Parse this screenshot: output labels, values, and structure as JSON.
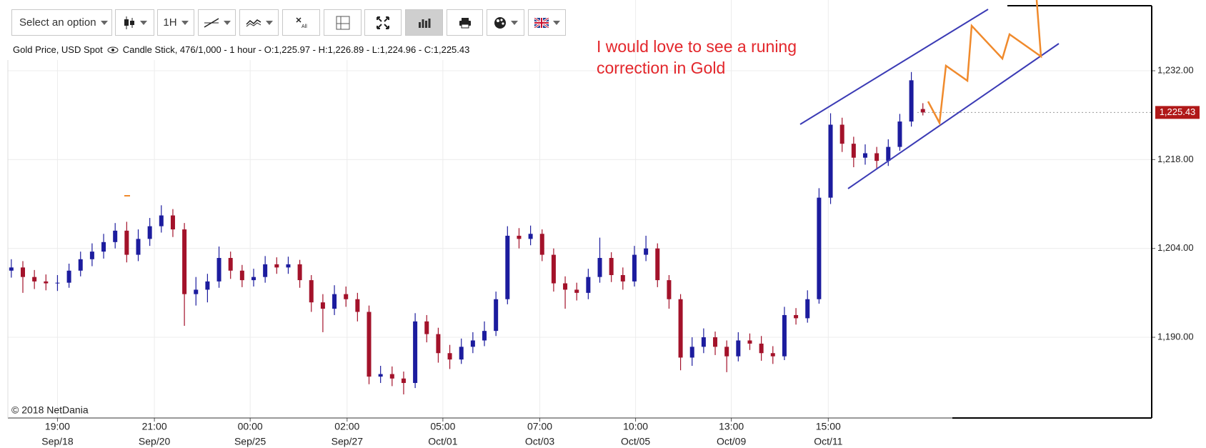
{
  "toolbar": {
    "select": "Select an option",
    "interval": "1H"
  },
  "chart_data": {
    "type": "candlestick",
    "instrument": "Gold Price, USD Spot",
    "info": "Candle Stick, 476/1,000 - 1 hour - O:1,225.97 - H:1,226.89 - L:1,224.96 - C:1,225.43",
    "annotation": [
      "I would love to see a runing",
      "correction in Gold"
    ],
    "copyright": "© 2018 NetDania",
    "up_color": "#1c1c9e",
    "down_color": "#a3122a",
    "x": [
      0,
      1,
      2,
      3,
      4,
      5,
      6,
      7,
      8,
      9,
      10,
      11,
      12,
      13,
      14,
      15,
      16,
      17,
      18,
      19,
      20,
      21,
      22,
      23,
      24,
      25,
      26,
      27,
      28,
      29,
      30,
      31,
      32,
      33,
      34,
      35,
      36,
      37,
      38,
      39,
      40,
      41,
      42,
      43,
      44,
      45,
      46,
      47,
      48,
      49,
      50,
      51,
      52,
      53,
      54,
      55,
      56,
      57,
      58,
      59,
      60,
      61,
      62,
      63,
      64,
      65,
      66,
      67,
      68,
      69,
      70,
      71,
      72,
      73,
      74,
      75,
      76,
      77,
      78,
      79
    ],
    "open": [
      1200.5,
      1201.0,
      1199.5,
      1198.8,
      1198.5,
      1198.6,
      1200.5,
      1202.3,
      1203.5,
      1205.0,
      1206.8,
      1203.0,
      1205.5,
      1207.5,
      1209.2,
      1207.0,
      1196.8,
      1197.5,
      1198.8,
      1202.5,
      1200.5,
      1199.0,
      1199.5,
      1201.5,
      1201.0,
      1201.5,
      1199.0,
      1195.5,
      1194.5,
      1196.8,
      1196.0,
      1194.0,
      1183.8,
      1184.2,
      1183.5,
      1182.8,
      1192.5,
      1190.5,
      1187.5,
      1186.5,
      1188.5,
      1189.5,
      1191.0,
      1196.0,
      1206.0,
      1205.5,
      1206.3,
      1203.0,
      1198.5,
      1197.5,
      1197.0,
      1199.5,
      1202.5,
      1199.8,
      1198.8,
      1203.0,
      1204.0,
      1199.0,
      1196.0,
      1186.8,
      1188.5,
      1190.0,
      1188.5,
      1187.0,
      1189.5,
      1189.0,
      1187.5,
      1187.0,
      1193.5,
      1193.0,
      1196.0,
      1212.0,
      1223.5,
      1220.5,
      1218.3,
      1219.0,
      1217.8,
      1220.0,
      1224.0,
      1225.97
    ],
    "high": [
      1202.3,
      1202.0,
      1200.6,
      1199.9,
      1199.8,
      1201.6,
      1203.5,
      1204.8,
      1206.3,
      1208.0,
      1208.2,
      1207.0,
      1208.8,
      1210.8,
      1210.2,
      1208.0,
      1199.5,
      1200.0,
      1204.3,
      1203.5,
      1201.4,
      1200.8,
      1202.8,
      1202.6,
      1202.7,
      1202.2,
      1199.8,
      1196.8,
      1198.2,
      1198.0,
      1197.0,
      1195.0,
      1185.5,
      1185.4,
      1184.6,
      1193.8,
      1193.5,
      1191.5,
      1188.8,
      1189.8,
      1190.8,
      1192.5,
      1197.2,
      1207.5,
      1207.2,
      1207.6,
      1207.0,
      1204.0,
      1199.6,
      1198.6,
      1200.8,
      1205.7,
      1203.4,
      1201.0,
      1204.4,
      1206.0,
      1204.8,
      1199.8,
      1196.8,
      1190.0,
      1191.4,
      1190.9,
      1189.5,
      1190.8,
      1190.6,
      1190.2,
      1188.6,
      1194.8,
      1194.6,
      1197.4,
      1213.5,
      1225.3,
      1224.6,
      1221.6,
      1220.4,
      1220.0,
      1221.2,
      1225.2,
      1231.8,
      1226.89
    ],
    "low": [
      1199.4,
      1197.0,
      1197.6,
      1197.4,
      1197.3,
      1197.8,
      1199.6,
      1201.2,
      1202.4,
      1204.0,
      1201.8,
      1202.0,
      1204.4,
      1206.5,
      1205.8,
      1191.8,
      1195.0,
      1195.5,
      1197.8,
      1199.2,
      1197.9,
      1198.0,
      1198.6,
      1200.0,
      1200.0,
      1197.8,
      1194.0,
      1190.8,
      1193.5,
      1194.8,
      1192.5,
      1182.6,
      1182.8,
      1182.3,
      1181.0,
      1182.0,
      1189.2,
      1186.0,
      1185.0,
      1185.8,
      1187.5,
      1188.6,
      1190.2,
      1195.2,
      1204.0,
      1204.5,
      1202.0,
      1197.2,
      1194.5,
      1195.8,
      1196.0,
      1198.6,
      1198.7,
      1197.5,
      1198.0,
      1202.0,
      1197.9,
      1194.5,
      1184.8,
      1185.5,
      1187.5,
      1187.2,
      1184.5,
      1186.2,
      1188.0,
      1186.3,
      1185.8,
      1186.4,
      1192.0,
      1192.3,
      1195.3,
      1211.0,
      1219.2,
      1216.8,
      1217.2,
      1216.6,
      1217.0,
      1219.4,
      1223.2,
      1224.96
    ],
    "close": [
      1201.0,
      1199.5,
      1198.8,
      1198.5,
      1198.6,
      1200.5,
      1202.3,
      1203.5,
      1205.0,
      1206.8,
      1203.0,
      1205.5,
      1207.5,
      1209.2,
      1207.0,
      1196.8,
      1197.5,
      1198.8,
      1202.5,
      1200.5,
      1199.0,
      1199.5,
      1201.5,
      1201.0,
      1201.5,
      1199.0,
      1195.5,
      1194.5,
      1196.8,
      1196.0,
      1194.0,
      1183.8,
      1184.2,
      1183.5,
      1182.8,
      1192.5,
      1190.5,
      1187.5,
      1186.5,
      1188.5,
      1189.5,
      1191.0,
      1196.0,
      1206.0,
      1205.5,
      1206.3,
      1203.0,
      1198.5,
      1197.5,
      1197.0,
      1199.5,
      1202.5,
      1199.8,
      1198.8,
      1203.0,
      1204.0,
      1199.0,
      1196.0,
      1186.8,
      1188.5,
      1190.0,
      1188.5,
      1187.0,
      1189.5,
      1189.0,
      1187.5,
      1187.0,
      1193.5,
      1193.0,
      1196.0,
      1212.0,
      1223.5,
      1220.5,
      1218.3,
      1219.0,
      1217.8,
      1220.0,
      1224.0,
      1230.5,
      1225.43
    ],
    "xlim": [
      -0.3,
      98.83
    ],
    "xticks": [
      {
        "value": 4,
        "label": "19:00"
      },
      {
        "value": 12.4,
        "label": "21:00"
      },
      {
        "value": 20.7,
        "label": "00:00"
      },
      {
        "value": 29.1,
        "label": "02:00"
      },
      {
        "value": 37.4,
        "label": "05:00"
      },
      {
        "value": 45.8,
        "label": "07:00"
      },
      {
        "value": 54.1,
        "label": "10:00"
      },
      {
        "value": 62.4,
        "label": "13:00"
      },
      {
        "value": 70.8,
        "label": "15:00"
      }
    ],
    "xtick_dates": [
      "Sep/18",
      "Sep/20",
      "Sep/25",
      "Sep/27",
      "Oct/01",
      "Oct/03",
      "Oct/05",
      "Oct/09",
      "Oct/11"
    ],
    "ylim": [
      1177.28,
      1243.15
    ],
    "yticks": [
      {
        "value": 1190,
        "label": "1,190.00"
      },
      {
        "value": 1204,
        "label": "1,204.00"
      },
      {
        "value": 1218,
        "label": "1,218.00"
      },
      {
        "value": 1232,
        "label": "1,232.00"
      }
    ],
    "grid": true,
    "last_price": {
      "value": 1225.43,
      "label": "1,225.43"
    }
  }
}
